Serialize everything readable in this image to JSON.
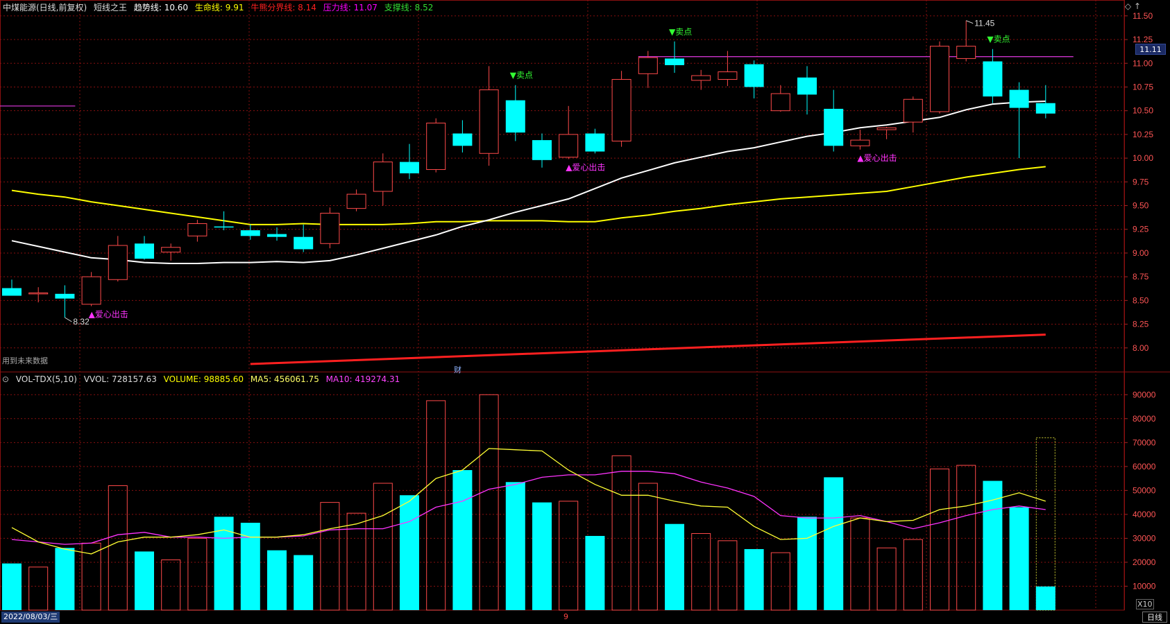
{
  "header": {
    "title": "中煤能源(日线,前复权)",
    "indicator": "短线之王",
    "items": [
      {
        "label": "趋势线: 10.60",
        "color": "#ffffff"
      },
      {
        "label": "生命线: 9.91",
        "color": "#ffff00"
      },
      {
        "label": "牛熊分界线: 8.14",
        "color": "#ff2020"
      },
      {
        "label": "压力线: 11.07",
        "color": "#ff00ff"
      },
      {
        "label": "支撑线: 8.52",
        "color": "#33dd33"
      }
    ],
    "icons": [
      "diamond-icon",
      "up-arrow-icon"
    ]
  },
  "vol_header": {
    "prefix": "VOL-TDX(5,10)",
    "vvol": "VVOL: 728157.63",
    "volume": "VOLUME: 98885.60",
    "ma5": "MA5: 456061.75",
    "ma10": "MA10: 419274.31"
  },
  "notes": {
    "future_data": "用到未来数据",
    "finance_marker": "财",
    "month_marker": "9",
    "date": "2022/08/03/三",
    "timeframe": "日线",
    "x10": "X10",
    "current_price": "11.11"
  },
  "colors": {
    "up": "#ff4a4a",
    "down": "#00ffff",
    "trend": "#ffffff",
    "life": "#ffff00",
    "bull_bear": "#ff2020",
    "resistance": "#cc33cc",
    "buy_text": "#ff33ff",
    "sell_text": "#33ff33",
    "grid": "#8a1010"
  },
  "chart_data": [
    {
      "type": "candlestick",
      "ylim": [
        7.75,
        11.55
      ],
      "yticks": [
        "11.50",
        "11.25",
        "11.00",
        "10.75",
        "10.50",
        "10.25",
        "10.00",
        "9.75",
        "9.50",
        "9.25",
        "9.00",
        "8.75",
        "8.50",
        "8.25",
        "8.00"
      ],
      "candles": [
        {
          "o": 8.63,
          "h": 8.72,
          "l": 8.55,
          "c": 8.55
        },
        {
          "o": 8.58,
          "h": 8.64,
          "l": 8.48,
          "c": 8.58
        },
        {
          "o": 8.57,
          "h": 8.66,
          "l": 8.32,
          "c": 8.52
        },
        {
          "o": 8.46,
          "h": 8.8,
          "l": 8.44,
          "c": 8.75
        },
        {
          "o": 8.72,
          "h": 9.18,
          "l": 8.7,
          "c": 9.08
        },
        {
          "o": 9.1,
          "h": 9.18,
          "l": 8.93,
          "c": 8.94
        },
        {
          "o": 9.01,
          "h": 9.1,
          "l": 8.92,
          "c": 9.06
        },
        {
          "o": 9.18,
          "h": 9.35,
          "l": 9.12,
          "c": 9.31
        },
        {
          "o": 9.28,
          "h": 9.44,
          "l": 9.24,
          "c": 9.27
        },
        {
          "o": 9.24,
          "h": 9.3,
          "l": 9.14,
          "c": 9.18
        },
        {
          "o": 9.2,
          "h": 9.27,
          "l": 9.13,
          "c": 9.17
        },
        {
          "o": 9.17,
          "h": 9.3,
          "l": 9.01,
          "c": 9.04
        },
        {
          "o": 9.1,
          "h": 9.48,
          "l": 9.05,
          "c": 9.42
        },
        {
          "o": 9.47,
          "h": 9.67,
          "l": 9.44,
          "c": 9.62
        },
        {
          "o": 9.65,
          "h": 10.05,
          "l": 9.5,
          "c": 9.96
        },
        {
          "o": 9.96,
          "h": 10.15,
          "l": 9.78,
          "c": 9.84
        },
        {
          "o": 9.88,
          "h": 10.42,
          "l": 9.85,
          "c": 10.37
        },
        {
          "o": 10.26,
          "h": 10.4,
          "l": 10.06,
          "c": 10.13
        },
        {
          "o": 10.05,
          "h": 10.97,
          "l": 9.92,
          "c": 10.72
        },
        {
          "o": 10.61,
          "h": 10.77,
          "l": 10.18,
          "c": 10.27
        },
        {
          "o": 10.19,
          "h": 10.26,
          "l": 9.9,
          "c": 9.98
        },
        {
          "o": 10.01,
          "h": 10.55,
          "l": 9.99,
          "c": 10.25
        },
        {
          "o": 10.26,
          "h": 10.31,
          "l": 10.05,
          "c": 10.07
        },
        {
          "o": 10.18,
          "h": 10.92,
          "l": 10.12,
          "c": 10.83
        },
        {
          "o": 10.89,
          "h": 11.13,
          "l": 10.74,
          "c": 11.06
        },
        {
          "o": 11.05,
          "h": 11.23,
          "l": 10.9,
          "c": 10.98
        },
        {
          "o": 10.82,
          "h": 10.93,
          "l": 10.72,
          "c": 10.87
        },
        {
          "o": 10.83,
          "h": 11.13,
          "l": 10.76,
          "c": 10.91
        },
        {
          "o": 10.99,
          "h": 11.03,
          "l": 10.63,
          "c": 10.75
        },
        {
          "o": 10.5,
          "h": 10.77,
          "l": 10.49,
          "c": 10.68
        },
        {
          "o": 10.85,
          "h": 10.97,
          "l": 10.46,
          "c": 10.67
        },
        {
          "o": 10.52,
          "h": 10.72,
          "l": 10.07,
          "c": 10.13
        },
        {
          "o": 10.13,
          "h": 10.3,
          "l": 10.09,
          "c": 10.19
        },
        {
          "o": 10.3,
          "h": 10.33,
          "l": 10.2,
          "c": 10.32
        },
        {
          "o": 10.38,
          "h": 10.65,
          "l": 10.27,
          "c": 10.62
        },
        {
          "o": 10.49,
          "h": 11.23,
          "l": 10.47,
          "c": 11.18
        },
        {
          "o": 11.05,
          "h": 11.45,
          "l": 11.02,
          "c": 11.18
        },
        {
          "o": 11.02,
          "h": 11.15,
          "l": 10.58,
          "c": 10.65
        },
        {
          "o": 10.72,
          "h": 10.8,
          "l": 10.0,
          "c": 10.53
        },
        {
          "o": 10.58,
          "h": 10.77,
          "l": 10.42,
          "c": 10.47
        }
      ],
      "trend_line": [
        9.13,
        9.07,
        9.01,
        8.95,
        8.93,
        8.9,
        8.89,
        8.89,
        8.9,
        8.9,
        8.91,
        8.9,
        8.92,
        8.98,
        9.05,
        9.12,
        9.19,
        9.28,
        9.35,
        9.43,
        9.5,
        9.57,
        9.68,
        9.79,
        9.87,
        9.95,
        10.01,
        10.07,
        10.11,
        10.17,
        10.23,
        10.27,
        10.32,
        10.35,
        10.39,
        10.43,
        10.51,
        10.57,
        10.59,
        10.6
      ],
      "life_line": [
        9.66,
        9.62,
        9.59,
        9.54,
        9.5,
        9.46,
        9.42,
        9.38,
        9.34,
        9.3,
        9.3,
        9.31,
        9.3,
        9.3,
        9.3,
        9.31,
        9.33,
        9.33,
        9.34,
        9.34,
        9.34,
        9.33,
        9.33,
        9.37,
        9.4,
        9.44,
        9.47,
        9.51,
        9.54,
        9.57,
        9.59,
        9.61,
        9.63,
        9.65,
        9.7,
        9.75,
        9.8,
        9.84,
        9.88,
        9.91
      ],
      "bull_bear_line": {
        "from_index": 9,
        "from_value": 7.83,
        "to_value": 8.14
      },
      "resistance_line": {
        "from_index": 24,
        "value": 11.07
      },
      "short_resistance": {
        "from_index": 0,
        "to_index": 2,
        "value": 10.55
      },
      "annotations": [
        {
          "index": 2,
          "value": 8.32,
          "label": "8.32",
          "kind": "low"
        },
        {
          "index": 36,
          "value": 11.45,
          "label": "11.45",
          "kind": "high"
        }
      ],
      "signals": [
        {
          "index": 3,
          "text": "▲爱心出击",
          "kind": "buy"
        },
        {
          "index": 21,
          "text": "▲爱心出击",
          "kind": "buy"
        },
        {
          "index": 32,
          "text": "▲爱心出击",
          "kind": "buy"
        },
        {
          "index": 19,
          "text": "▼卖点",
          "kind": "sell"
        },
        {
          "index": 25,
          "text": "▼卖点",
          "kind": "sell"
        },
        {
          "index": 37,
          "text": "▼卖点",
          "kind": "sell"
        }
      ]
    },
    {
      "type": "bar",
      "ylim": [
        0,
        95000
      ],
      "yticks": [
        "90000",
        "80000",
        "70000",
        "60000",
        "50000",
        "40000",
        "30000",
        "20000",
        "10000"
      ],
      "volumes": [
        19500,
        18000,
        26000,
        28000,
        52000,
        24500,
        21000,
        30000,
        39000,
        36500,
        25000,
        23000,
        45000,
        40500,
        53000,
        48000,
        87500,
        58500,
        90000,
        53500,
        45000,
        45500,
        31000,
        64500,
        53000,
        36000,
        32000,
        29000,
        25500,
        24000,
        39000,
        55500,
        38500,
        26000,
        29500,
        59000,
        60500,
        54000,
        43000,
        72000
      ],
      "current_volume": 9888,
      "ma5": [
        34500,
        28500,
        25500,
        23500,
        28500,
        30500,
        30500,
        31500,
        33500,
        30500,
        30500,
        31500,
        34000,
        36000,
        39500,
        45500,
        55000,
        58500,
        67500,
        67000,
        66500,
        58500,
        52500,
        48000,
        48000,
        45500,
        43500,
        43000,
        35000,
        29500,
        30000,
        35000,
        38500,
        37000,
        37500,
        42000,
        43500,
        46000,
        49000,
        45500
      ],
      "ma10": [
        29500,
        28500,
        27500,
        28000,
        31500,
        32500,
        30500,
        30500,
        30000,
        30500,
        30500,
        31000,
        33500,
        34000,
        34000,
        37000,
        43000,
        45500,
        50500,
        52500,
        55500,
        56500,
        56500,
        58000,
        58000,
        57000,
        53500,
        51000,
        47500,
        39500,
        38500,
        38500,
        39500,
        37000,
        34000,
        36500,
        39500,
        42000,
        43500,
        42000
      ]
    }
  ]
}
